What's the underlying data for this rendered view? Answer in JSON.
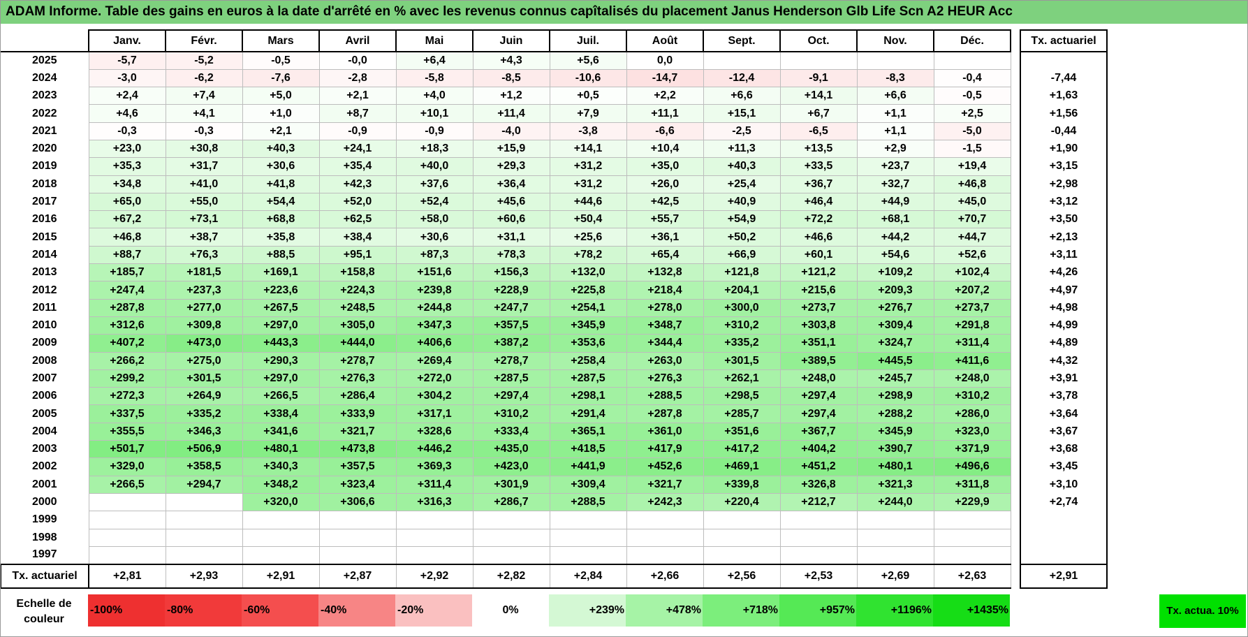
{
  "title": "ADAM Informe. Table des gains en euros à la date d'arrêté en % avec les revenus connus capîtalisés du placement Janus Henderson Glb Life Scn A2 HEUR Acc",
  "chart_data": {
    "type": "table",
    "columns": [
      "Janv.",
      "Févr.",
      "Mars",
      "Avril",
      "Mai",
      "Juin",
      "Juil.",
      "Août",
      "Sept.",
      "Oct.",
      "Nov.",
      "Déc."
    ],
    "tx_header": "Tx. actuariel",
    "footer_label": "Tx. actuariel",
    "rows": [
      {
        "year": "2025",
        "values": [
          "-5,7",
          "-5,2",
          "-0,5",
          "-0,0",
          "+6,4",
          "+4,3",
          "+5,6",
          "0,0",
          "",
          "",
          "",
          ""
        ],
        "tx": ""
      },
      {
        "year": "2024",
        "values": [
          "-3,0",
          "-6,2",
          "-7,6",
          "-2,8",
          "-5,8",
          "-8,5",
          "-10,6",
          "-14,7",
          "-12,4",
          "-9,1",
          "-8,3",
          "-0,4"
        ],
        "tx": "-7,44"
      },
      {
        "year": "2023",
        "values": [
          "+2,4",
          "+7,4",
          "+5,0",
          "+2,1",
          "+4,0",
          "+1,2",
          "+0,5",
          "+2,2",
          "+6,6",
          "+14,1",
          "+6,6",
          "-0,5"
        ],
        "tx": "+1,63"
      },
      {
        "year": "2022",
        "values": [
          "+4,6",
          "+4,1",
          "+1,0",
          "+8,7",
          "+10,1",
          "+11,4",
          "+7,9",
          "+11,1",
          "+15,1",
          "+6,7",
          "+1,1",
          "+2,5"
        ],
        "tx": "+1,56"
      },
      {
        "year": "2021",
        "values": [
          "-0,3",
          "-0,3",
          "+2,1",
          "-0,9",
          "-0,9",
          "-4,0",
          "-3,8",
          "-6,6",
          "-2,5",
          "-6,5",
          "+1,1",
          "-5,0"
        ],
        "tx": "-0,44"
      },
      {
        "year": "2020",
        "values": [
          "+23,0",
          "+30,8",
          "+40,3",
          "+24,1",
          "+18,3",
          "+15,9",
          "+14,1",
          "+10,4",
          "+11,3",
          "+13,5",
          "+2,9",
          "-1,5"
        ],
        "tx": "+1,90"
      },
      {
        "year": "2019",
        "values": [
          "+35,3",
          "+31,7",
          "+30,6",
          "+35,4",
          "+40,0",
          "+29,3",
          "+31,2",
          "+35,0",
          "+40,3",
          "+33,5",
          "+23,7",
          "+19,4"
        ],
        "tx": "+3,15"
      },
      {
        "year": "2018",
        "values": [
          "+34,8",
          "+41,0",
          "+41,8",
          "+42,3",
          "+37,6",
          "+36,4",
          "+31,2",
          "+26,0",
          "+25,4",
          "+36,7",
          "+32,7",
          "+46,8"
        ],
        "tx": "+2,98"
      },
      {
        "year": "2017",
        "values": [
          "+65,0",
          "+55,0",
          "+54,4",
          "+52,0",
          "+52,4",
          "+45,6",
          "+44,6",
          "+42,5",
          "+40,9",
          "+46,4",
          "+44,9",
          "+45,0"
        ],
        "tx": "+3,12"
      },
      {
        "year": "2016",
        "values": [
          "+67,2",
          "+73,1",
          "+68,8",
          "+62,5",
          "+58,0",
          "+60,6",
          "+50,4",
          "+55,7",
          "+54,9",
          "+72,2",
          "+68,1",
          "+70,7"
        ],
        "tx": "+3,50"
      },
      {
        "year": "2015",
        "values": [
          "+46,8",
          "+38,7",
          "+35,8",
          "+38,4",
          "+30,6",
          "+31,1",
          "+25,6",
          "+36,1",
          "+50,2",
          "+46,6",
          "+44,2",
          "+44,7"
        ],
        "tx": "+2,13"
      },
      {
        "year": "2014",
        "values": [
          "+88,7",
          "+76,3",
          "+88,5",
          "+95,1",
          "+87,3",
          "+78,3",
          "+78,2",
          "+65,4",
          "+66,9",
          "+60,1",
          "+54,6",
          "+52,6"
        ],
        "tx": "+3,11"
      },
      {
        "year": "2013",
        "values": [
          "+185,7",
          "+181,5",
          "+169,1",
          "+158,8",
          "+151,6",
          "+156,3",
          "+132,0",
          "+132,8",
          "+121,8",
          "+121,2",
          "+109,2",
          "+102,4"
        ],
        "tx": "+4,26"
      },
      {
        "year": "2012",
        "values": [
          "+247,4",
          "+237,3",
          "+223,6",
          "+224,3",
          "+239,8",
          "+228,9",
          "+225,8",
          "+218,4",
          "+204,1",
          "+215,6",
          "+209,3",
          "+207,2"
        ],
        "tx": "+4,97"
      },
      {
        "year": "2011",
        "values": [
          "+287,8",
          "+277,0",
          "+267,5",
          "+248,5",
          "+244,8",
          "+247,7",
          "+254,1",
          "+278,0",
          "+300,0",
          "+273,7",
          "+276,7",
          "+273,7"
        ],
        "tx": "+4,98"
      },
      {
        "year": "2010",
        "values": [
          "+312,6",
          "+309,8",
          "+297,0",
          "+305,0",
          "+347,3",
          "+357,5",
          "+345,9",
          "+348,7",
          "+310,2",
          "+303,8",
          "+309,4",
          "+291,8"
        ],
        "tx": "+4,99"
      },
      {
        "year": "2009",
        "values": [
          "+407,2",
          "+473,0",
          "+443,3",
          "+444,0",
          "+406,6",
          "+387,2",
          "+353,6",
          "+344,4",
          "+335,2",
          "+351,1",
          "+324,7",
          "+311,4"
        ],
        "tx": "+4,89"
      },
      {
        "year": "2008",
        "values": [
          "+266,2",
          "+275,0",
          "+290,3",
          "+278,7",
          "+269,4",
          "+278,7",
          "+258,4",
          "+263,0",
          "+301,5",
          "+389,5",
          "+445,5",
          "+411,6"
        ],
        "tx": "+4,32"
      },
      {
        "year": "2007",
        "values": [
          "+299,2",
          "+301,5",
          "+297,0",
          "+276,3",
          "+272,0",
          "+287,5",
          "+287,5",
          "+276,3",
          "+262,1",
          "+248,0",
          "+245,7",
          "+248,0"
        ],
        "tx": "+3,91"
      },
      {
        "year": "2006",
        "values": [
          "+272,3",
          "+264,9",
          "+266,5",
          "+286,4",
          "+304,2",
          "+297,4",
          "+298,1",
          "+288,5",
          "+298,5",
          "+297,4",
          "+298,9",
          "+310,2"
        ],
        "tx": "+3,78"
      },
      {
        "year": "2005",
        "values": [
          "+337,5",
          "+335,2",
          "+338,4",
          "+333,9",
          "+317,1",
          "+310,2",
          "+291,4",
          "+287,8",
          "+285,7",
          "+297,4",
          "+288,2",
          "+286,0"
        ],
        "tx": "+3,64"
      },
      {
        "year": "2004",
        "values": [
          "+355,5",
          "+346,3",
          "+341,6",
          "+321,7",
          "+328,6",
          "+333,4",
          "+365,1",
          "+361,0",
          "+351,6",
          "+367,7",
          "+345,9",
          "+323,0"
        ],
        "tx": "+3,67"
      },
      {
        "year": "2003",
        "values": [
          "+501,7",
          "+506,9",
          "+480,1",
          "+473,8",
          "+446,2",
          "+435,0",
          "+418,5",
          "+417,9",
          "+417,2",
          "+404,2",
          "+390,7",
          "+371,9"
        ],
        "tx": "+3,68"
      },
      {
        "year": "2002",
        "values": [
          "+329,0",
          "+358,5",
          "+340,3",
          "+357,5",
          "+369,3",
          "+423,0",
          "+441,9",
          "+452,6",
          "+469,1",
          "+451,2",
          "+480,1",
          "+496,6"
        ],
        "tx": "+3,45"
      },
      {
        "year": "2001",
        "values": [
          "+266,5",
          "+294,7",
          "+348,2",
          "+323,4",
          "+311,4",
          "+301,9",
          "+309,4",
          "+321,7",
          "+339,8",
          "+326,8",
          "+321,3",
          "+311,8"
        ],
        "tx": "+3,10"
      },
      {
        "year": "2000",
        "values": [
          "",
          "",
          "+320,0",
          "+306,6",
          "+316,3",
          "+286,7",
          "+288,5",
          "+242,3",
          "+220,4",
          "+212,7",
          "+244,0",
          "+229,9"
        ],
        "tx": "+2,74"
      },
      {
        "year": "1999",
        "values": [
          "",
          "",
          "",
          "",
          "",
          "",
          "",
          "",
          "",
          "",
          "",
          ""
        ],
        "tx": ""
      },
      {
        "year": "1998",
        "values": [
          "",
          "",
          "",
          "",
          "",
          "",
          "",
          "",
          "",
          "",
          "",
          ""
        ],
        "tx": ""
      },
      {
        "year": "1997",
        "values": [
          "",
          "",
          "",
          "",
          "",
          "",
          "",
          "",
          "",
          "",
          "",
          ""
        ],
        "tx": ""
      }
    ],
    "footer_values": [
      "+2,81",
      "+2,93",
      "+2,91",
      "+2,87",
      "+2,92",
      "+2,82",
      "+2,84",
      "+2,66",
      "+2,56",
      "+2,53",
      "+2,69",
      "+2,63"
    ],
    "footer_tx": "+2,91"
  },
  "scale": {
    "label": "Echelle de couleur",
    "items": [
      {
        "label": "-100%",
        "color": "#ee3030"
      },
      {
        "label": "-80%",
        "color": "#f13a3a"
      },
      {
        "label": "-60%",
        "color": "#f44e4e"
      },
      {
        "label": "-40%",
        "color": "#f78585"
      },
      {
        "label": "-20%",
        "color": "#fac0c0"
      },
      {
        "label": "0%",
        "color": "#ffffff"
      },
      {
        "label": "+239%",
        "color": "#d4f8d4"
      },
      {
        "label": "+478%",
        "color": "#a6f3a6"
      },
      {
        "label": "+718%",
        "color": "#7cee7c"
      },
      {
        "label": "+957%",
        "color": "#55e955"
      },
      {
        "label": "+1196%",
        "color": "#30e330"
      },
      {
        "label": "+1435%",
        "color": "#16dd16"
      }
    ],
    "tx_label": "Tx. actua. 10%",
    "tx_color": "#00e000"
  }
}
